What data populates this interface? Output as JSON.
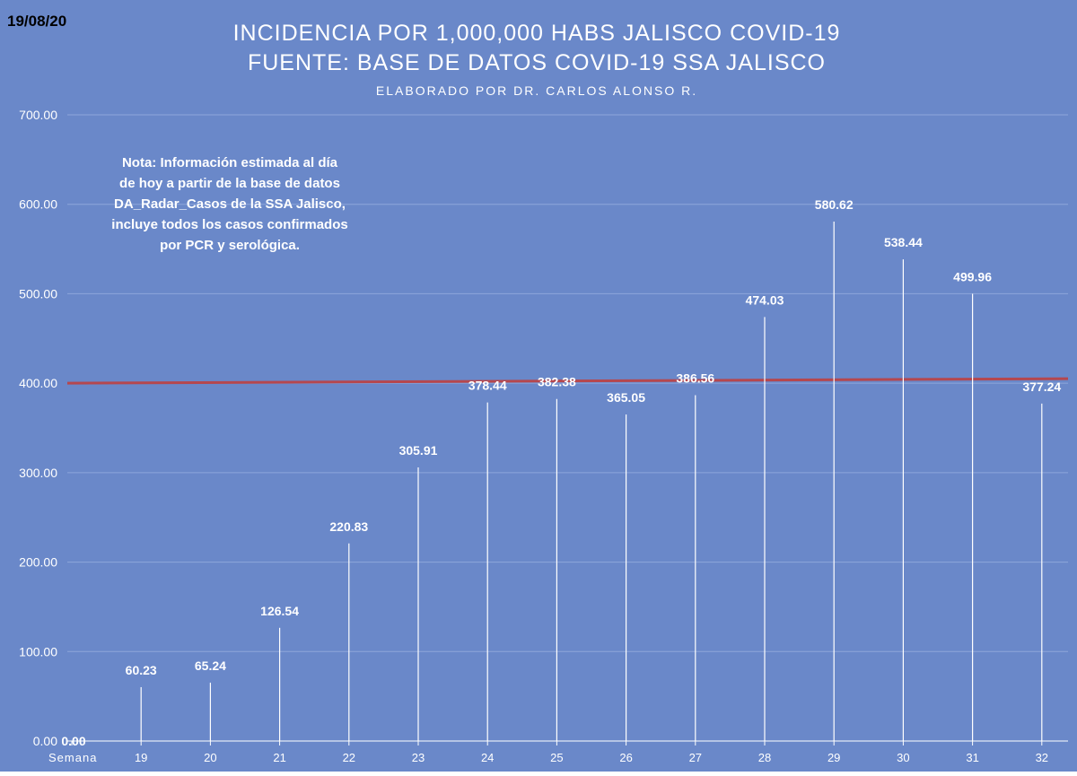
{
  "date_stamp": "19/08/20",
  "note": {
    "lines": [
      "Nota: Información estimada al día",
      "de hoy a partir de la base de datos",
      "DA_Radar_Casos de la SSA Jalisco,",
      "incluye todos los casos confirmados",
      "por PCR y serológica."
    ]
  },
  "colors": {
    "plot_background": "#6a88c9",
    "gridline": "#8ea6da",
    "stem": "#ffffff",
    "reference_line": "#b5474e",
    "text": "#ffffff",
    "date_text": "#000000"
  },
  "chart_data": {
    "type": "bar",
    "title": "INCIDENCIA POR 1,000,000 HABS JALISCO COVID-19",
    "subtitle": "FUENTE: BASE DE DATOS COVID-19 SSA JALISCO",
    "credit": "ELABORADO POR DR. CARLOS ALONSO R.",
    "xlabel": "Semana",
    "ylabel": "",
    "categories": [
      "",
      "19",
      "20",
      "21",
      "22",
      "23",
      "24",
      "25",
      "26",
      "27",
      "28",
      "29",
      "30",
      "31",
      "32"
    ],
    "values": [
      0.0,
      60.23,
      65.24,
      126.54,
      220.83,
      305.91,
      378.44,
      382.38,
      365.05,
      386.56,
      474.03,
      580.62,
      538.44,
      499.96,
      377.24
    ],
    "value_labels": [
      "0.00",
      "60.23",
      "65.24",
      "126.54",
      "220.83",
      "305.91",
      "378.44",
      "382.38",
      "365.05",
      "386.56",
      "474.03",
      "580.62",
      "538.44",
      "499.96",
      "377.24"
    ],
    "ylim": [
      0,
      700
    ],
    "yticks": [
      0,
      100,
      200,
      300,
      400,
      500,
      600,
      700
    ],
    "ytick_labels": [
      "0.00",
      "100.00",
      "200.00",
      "300.00",
      "400.00",
      "500.00",
      "600.00",
      "700.00"
    ],
    "reference_line": {
      "start_value": 400,
      "end_value": 405
    },
    "grid": true,
    "legend": "none"
  }
}
